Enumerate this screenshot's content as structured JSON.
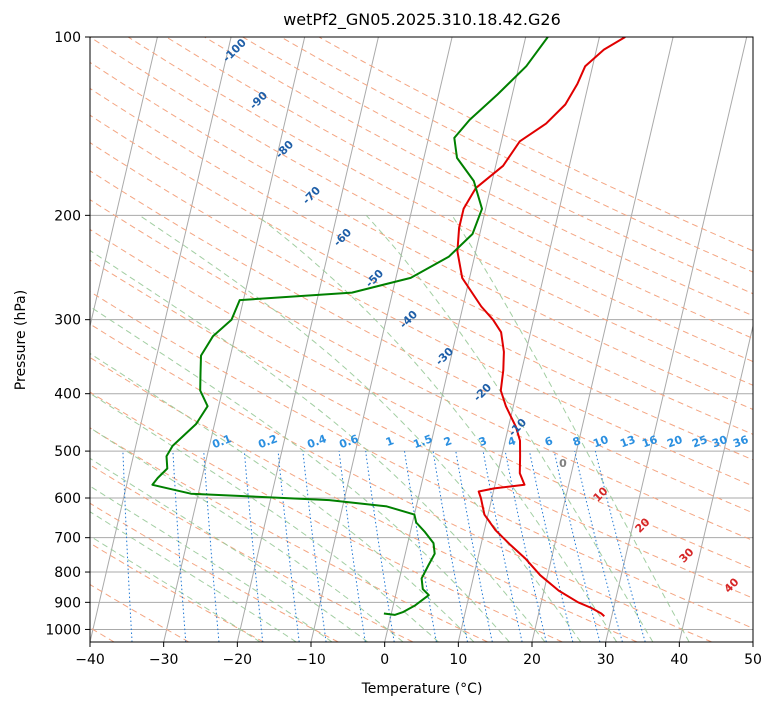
{
  "chart_data": {
    "type": "line",
    "title": "wetPf2_GN05.2025.310.18.42.G26",
    "xlabel": "Temperature (°C)",
    "ylabel": "Pressure (hPa)",
    "xlim": [
      -40,
      50
    ],
    "ylim": [
      1050,
      100
    ],
    "x_ticks": [
      -40,
      -30,
      -20,
      -10,
      0,
      10,
      20,
      30,
      40,
      50
    ],
    "y_ticks": [
      100,
      200,
      300,
      400,
      500,
      600,
      700,
      800,
      900,
      1000
    ],
    "grid": true,
    "colors": {
      "temperature": "#e00000",
      "dewpoint": "#008000",
      "isotherm": "#aaaaaa",
      "dry_adiabat": "#f4a582",
      "moist_adiabat": "#98c998",
      "mixing_ratio": "#1f77d4",
      "ann_isotherm": "#1f5fa8",
      "ann_mixing": "#2a8fe0",
      "ann_dry": "#d62728",
      "ann_zero": "#808080"
    },
    "series": [
      {
        "name": "Temperature",
        "points": [
          [
            29.0,
            950
          ],
          [
            28.5,
            940
          ],
          [
            27.0,
            920
          ],
          [
            25.0,
            900
          ],
          [
            22.0,
            860
          ],
          [
            19.0,
            810
          ],
          [
            16.5,
            760
          ],
          [
            14.0,
            720
          ],
          [
            11.5,
            680
          ],
          [
            9.5,
            640
          ],
          [
            8.5,
            600
          ],
          [
            8.0,
            585
          ],
          [
            10.0,
            578
          ],
          [
            14.0,
            570
          ],
          [
            13.0,
            545
          ],
          [
            12.5,
            510
          ],
          [
            12.0,
            480
          ],
          [
            11.0,
            455
          ],
          [
            9.0,
            420
          ],
          [
            7.8,
            395
          ],
          [
            7.5,
            365
          ],
          [
            7.0,
            340
          ],
          [
            6.0,
            315
          ],
          [
            4.5,
            300
          ],
          [
            2.5,
            285
          ],
          [
            -1.0,
            255
          ],
          [
            -2.5,
            230
          ],
          [
            -3.0,
            210
          ],
          [
            -3.0,
            195
          ],
          [
            -2.0,
            180
          ],
          [
            1.0,
            165
          ],
          [
            2.5,
            150
          ],
          [
            5.5,
            140
          ],
          [
            7.5,
            130
          ],
          [
            8.5,
            120
          ],
          [
            9.0,
            112
          ],
          [
            11.0,
            105
          ],
          [
            13.5,
            100
          ]
        ]
      },
      {
        "name": "Dewpoint",
        "points": [
          [
            -1.0,
            940
          ],
          [
            0.5,
            945
          ],
          [
            1.5,
            935
          ],
          [
            3.0,
            910
          ],
          [
            4.5,
            875
          ],
          [
            3.5,
            855
          ],
          [
            3.0,
            820
          ],
          [
            3.5,
            780
          ],
          [
            4.0,
            745
          ],
          [
            3.5,
            715
          ],
          [
            2.0,
            685
          ],
          [
            0.5,
            660
          ],
          [
            0.0,
            640
          ],
          [
            -4.0,
            620
          ],
          [
            -12.0,
            605
          ],
          [
            -31.0,
            590
          ],
          [
            -36.5,
            570
          ],
          [
            -36.0,
            555
          ],
          [
            -35.0,
            535
          ],
          [
            -35.5,
            510
          ],
          [
            -35.0,
            490
          ],
          [
            -32.5,
            450
          ],
          [
            -31.5,
            420
          ],
          [
            -33.0,
            395
          ],
          [
            -33.5,
            370
          ],
          [
            -34.0,
            345
          ],
          [
            -33.0,
            320
          ],
          [
            -31.0,
            300
          ],
          [
            -30.5,
            278
          ],
          [
            -15.5,
            270
          ],
          [
            -8.0,
            255
          ],
          [
            -3.5,
            235
          ],
          [
            -1.0,
            215
          ],
          [
            -0.5,
            195
          ],
          [
            -2.5,
            175
          ],
          [
            -5.5,
            160
          ],
          [
            -6.5,
            148
          ],
          [
            -5.0,
            138
          ],
          [
            -2.0,
            125
          ],
          [
            1.0,
            112
          ],
          [
            3.0,
            100
          ]
        ]
      }
    ],
    "annotations": {
      "isotherms": [
        "-100",
        "-90",
        "-80",
        "-70",
        "-60",
        "-50",
        "-40",
        "-30",
        "-20",
        "-10"
      ],
      "mixing_ratios": [
        "0.1",
        "0.2",
        "0.4",
        "0.6",
        "1",
        "1.5",
        "2",
        "3",
        "4",
        "6",
        "8",
        "10",
        "13",
        "16",
        "20",
        "25",
        "30",
        "36"
      ],
      "dry_adiabats": [
        "10",
        "20",
        "30",
        "40"
      ],
      "zero_isotherm": "0"
    }
  }
}
